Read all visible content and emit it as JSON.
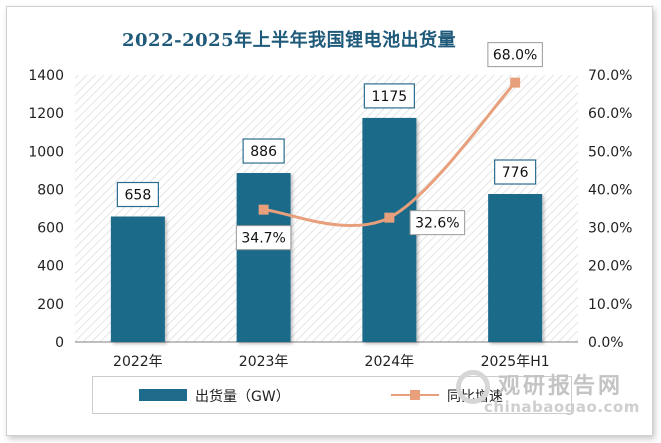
{
  "chart_data": {
    "type": "bar",
    "title": "2022-2025年上半年我国锂电池出货量",
    "categories": [
      "2022年",
      "2023年",
      "2024年",
      "2025年H1"
    ],
    "series": [
      {
        "name": "出货量（GW）",
        "type": "bar",
        "axis": "left",
        "values": [
          658,
          886,
          1175,
          776
        ],
        "labels": [
          "658",
          "886",
          "1175",
          "776"
        ]
      },
      {
        "name": "同比增速",
        "type": "line",
        "axis": "right",
        "values": [
          null,
          34.7,
          32.6,
          68.0
        ],
        "labels": [
          "",
          "34.7%",
          "32.6%",
          "68.0%"
        ]
      }
    ],
    "y_left": {
      "min": 0,
      "max": 1400,
      "ticks": [
        "0",
        "200",
        "400",
        "600",
        "800",
        "1000",
        "1200",
        "1400"
      ]
    },
    "y_right": {
      "min": 0,
      "max": 70,
      "ticks": [
        "0.0%",
        "10.0%",
        "20.0%",
        "30.0%",
        "40.0%",
        "50.0%",
        "60.0%",
        "70.0%"
      ]
    },
    "legend": {
      "position": "bottom",
      "bar_label": "出货量（GW）",
      "line_label": "同比增速"
    },
    "colors": {
      "bar": "#1e6a8a",
      "line": "#e8a07c",
      "title": "#1f5a7a"
    }
  },
  "watermark": {
    "name": "观研报告网",
    "url": "chinabaogao.com"
  }
}
